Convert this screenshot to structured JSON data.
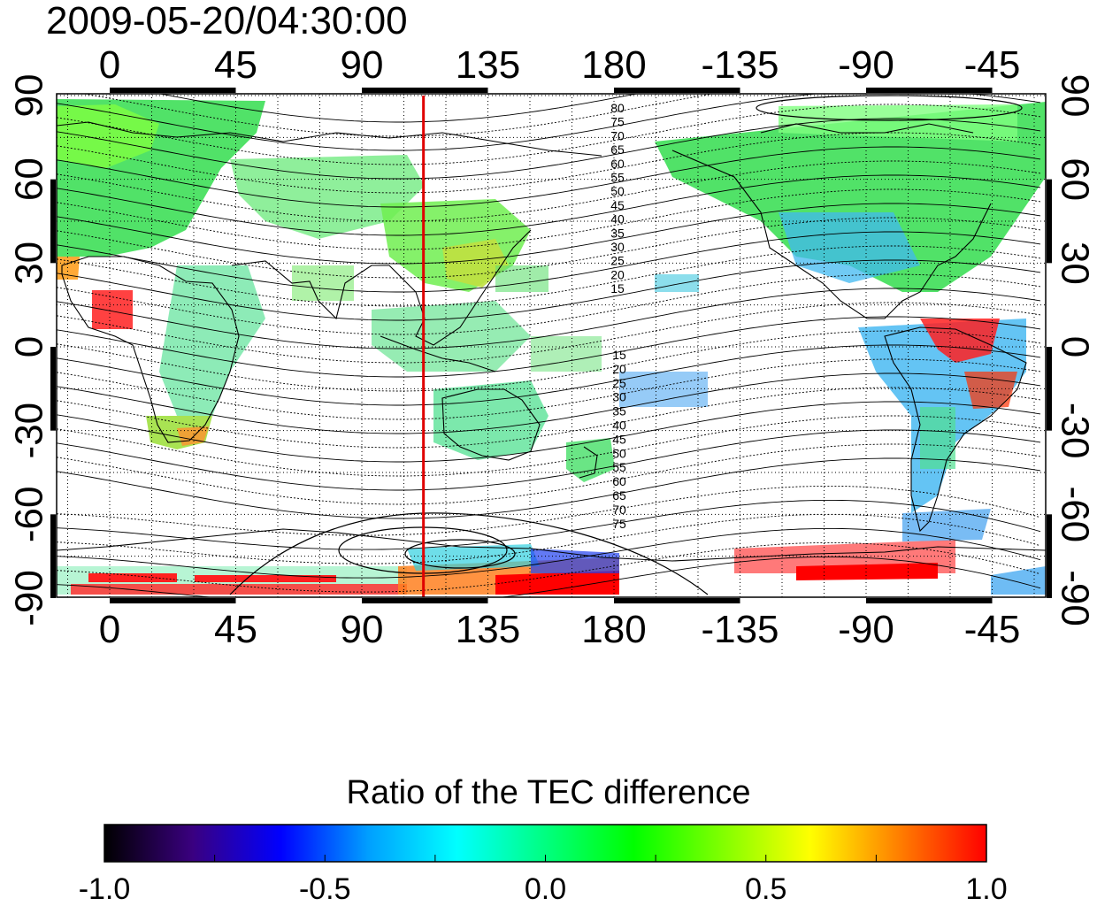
{
  "title": "2009-05-20/04:30:00",
  "map": {
    "lon_ticks_top": [
      "0",
      "45",
      "90",
      "135",
      "180",
      "-135",
      "-90",
      "-45"
    ],
    "lon_ticks_bottom": [
      "0",
      "45",
      "90",
      "135",
      "180",
      "-135",
      "-90",
      "-45"
    ],
    "lat_ticks_left": [
      "90",
      "60",
      "30",
      "0",
      "-30",
      "-60",
      "-90"
    ],
    "lat_ticks_right": [
      "90",
      "60",
      "30",
      "0",
      "-30",
      "-60",
      "-90"
    ],
    "contour_labels_north": [
      "80",
      "75",
      "70",
      "65",
      "60",
      "55",
      "50",
      "45",
      "40",
      "35",
      "30",
      "25",
      "20",
      "15"
    ],
    "contour_labels_south": [
      "15",
      "20",
      "25",
      "30",
      "35",
      "40",
      "45",
      "50",
      "55",
      "60",
      "65",
      "70",
      "75"
    ],
    "marker_longitude": 112,
    "marker_color": "#e00000"
  },
  "colorbar": {
    "title": "Ratio of the TEC difference",
    "tick_labels": [
      "-1.0",
      "-0.5",
      "0.0",
      "0.5",
      "1.0"
    ],
    "range": [
      -1.0,
      1.0
    ],
    "colors": [
      "#000000",
      "#3a0080",
      "#0000ff",
      "#00a0ff",
      "#00ffff",
      "#00ff80",
      "#00ff00",
      "#80ff00",
      "#ffff00",
      "#ff8000",
      "#ff0000"
    ]
  }
}
